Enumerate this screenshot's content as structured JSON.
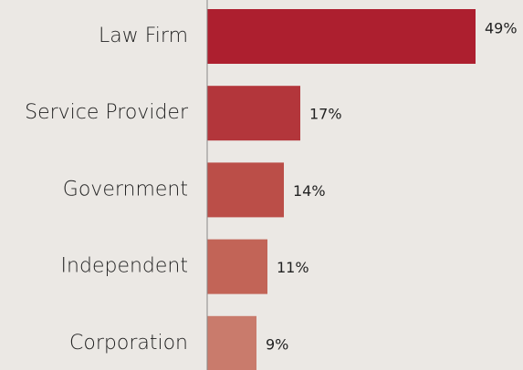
{
  "chart_data": {
    "type": "barh",
    "categories": [
      "Law Firm",
      "Service Provider",
      "Government",
      "Independent",
      "Corporation"
    ],
    "values": [
      49,
      17,
      14,
      11,
      9
    ],
    "value_labels": [
      "49%",
      "17%",
      "14%",
      "11%",
      "9%"
    ],
    "colors": [
      "#ad1f2f",
      "#b3363b",
      "#bb4e48",
      "#c26457",
      "#c97b6c"
    ],
    "xlim": [
      0,
      50
    ]
  }
}
